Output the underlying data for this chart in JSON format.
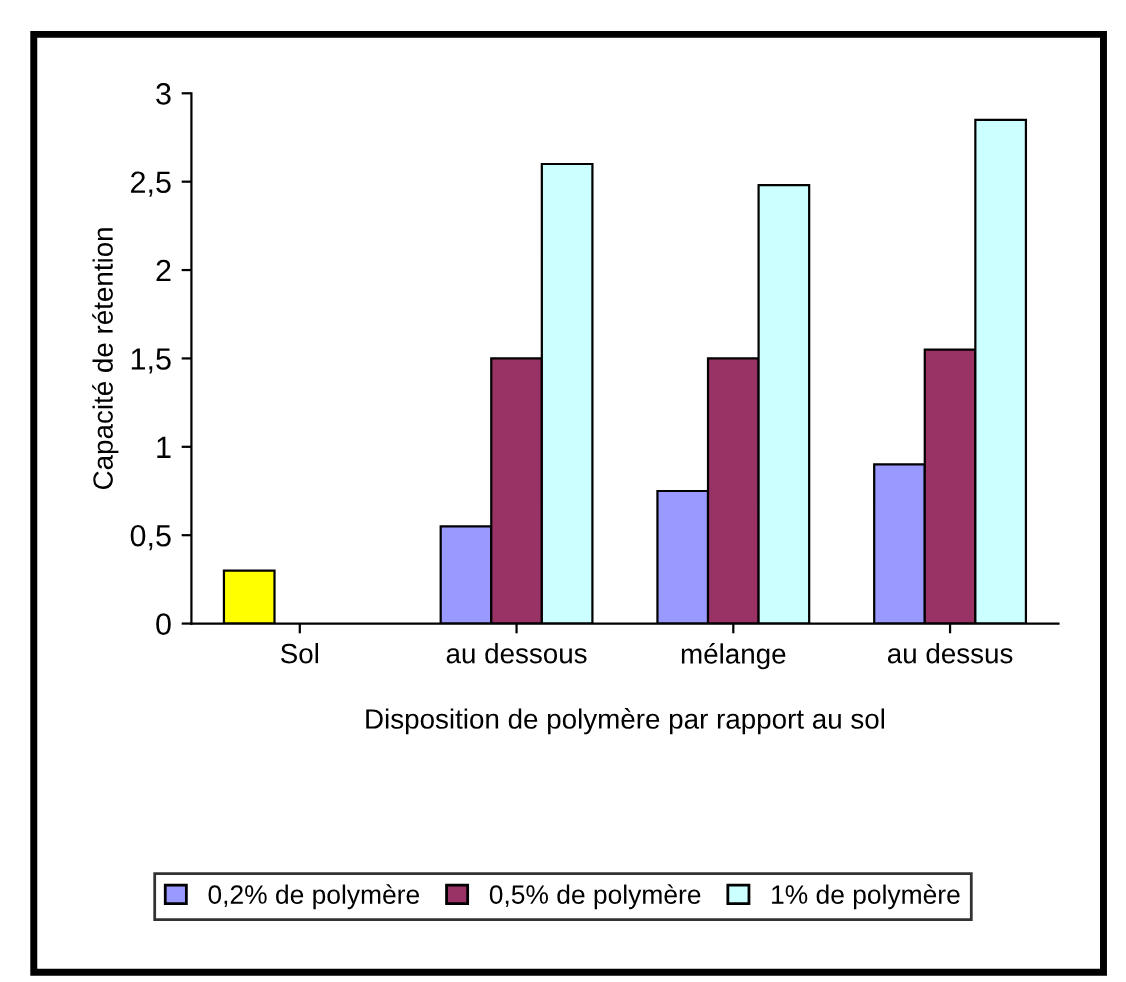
{
  "chart_data": {
    "type": "bar",
    "xlabel": "Disposition de polymère par rapport au sol",
    "ylabel": "Capacité de rétention",
    "categories": [
      "Sol",
      "au dessous",
      "mélange",
      "au dessus"
    ],
    "series": [
      {
        "name": "0,2% de polymère",
        "color": "#9999ff",
        "colors": [
          "#ffff00",
          "#9999ff",
          "#9999ff",
          "#9999ff"
        ],
        "values": [
          0.3,
          0.55,
          0.75,
          0.9
        ]
      },
      {
        "name": "0,5% de polymère",
        "color": "#993366",
        "values": [
          null,
          1.5,
          1.5,
          1.55
        ]
      },
      {
        "name": "1% de polymère",
        "color": "#ccffff",
        "values": [
          null,
          2.6,
          2.48,
          2.85
        ]
      }
    ],
    "ylim": [
      0,
      3
    ],
    "yticks": [
      0,
      {
        "value": 0.5,
        "label": "0,5"
      },
      1,
      {
        "value": 1.5,
        "label": "1,5"
      },
      2,
      {
        "value": 2.5,
        "label": "2,5"
      },
      3
    ],
    "grid": false,
    "legend": "bottom"
  }
}
